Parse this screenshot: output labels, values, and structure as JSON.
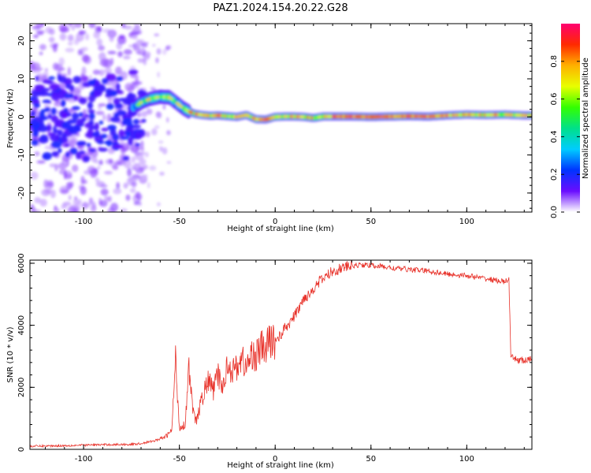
{
  "figure": {
    "title": "PAZ1.2024.154.20.22.G28"
  },
  "chart_data": [
    {
      "type": "heatmap",
      "xlabel": "Height of straight line (km)",
      "ylabel": "Frequency (Hz)",
      "xlim": [
        -128,
        134
      ],
      "ylim": [
        -25,
        24.5
      ],
      "xticks": [
        -100,
        -50,
        0,
        50,
        100
      ],
      "yticks": [
        -20,
        -10,
        0,
        10,
        20
      ],
      "grid": false,
      "ridge": {
        "x": [
          -74,
          -70,
          -65,
          -60,
          -55,
          -51,
          -48,
          -45,
          -42,
          -38,
          -34,
          -30,
          -25,
          -20,
          -15,
          -10,
          -5,
          0,
          5,
          10,
          15,
          20,
          25,
          30,
          40,
          50,
          60,
          70,
          80,
          90,
          100,
          110,
          120,
          130,
          134
        ],
        "freq": [
          2.5,
          3.8,
          4.8,
          5.3,
          5.1,
          3.5,
          2.3,
          1.4,
          0.8,
          0.5,
          0.3,
          0.4,
          0.2,
          0.0,
          0.5,
          -0.6,
          -0.7,
          0.0,
          0.1,
          0.1,
          0.0,
          -0.3,
          0.1,
          0.1,
          0.1,
          0.0,
          0.1,
          0.2,
          0.1,
          0.4,
          0.6,
          0.5,
          0.6,
          0.4,
          0.4
        ]
      },
      "colorbar": {
        "label": "Normalized spectral amplitude",
        "range": [
          0.0,
          1.0
        ],
        "ticks": [
          0.0,
          0.2,
          0.4,
          0.6,
          0.8
        ],
        "tick_labels": [
          "0.0",
          "0.2",
          "0.4",
          "0.6",
          "0.8"
        ],
        "colormap": [
          "#ffffff",
          "#6a0dff",
          "#0033ff",
          "#00ccff",
          "#00e08a",
          "#33ff00",
          "#e8ff00",
          "#ffb000",
          "#ff2a00",
          "#ff0070"
        ]
      }
    },
    {
      "type": "line",
      "xlabel": "Height of straight line (km)",
      "ylabel": "SNR (10 * v/v)",
      "xlim": [
        -128,
        134
      ],
      "ylim": [
        0,
        6100
      ],
      "xticks": [
        -100,
        -50,
        0,
        50,
        100
      ],
      "yticks": [
        0,
        2000,
        4000,
        6000
      ],
      "grid": false,
      "color": "#e8322a",
      "x": [
        -128,
        -110,
        -90,
        -75,
        -70,
        -65,
        -60,
        -57,
        -54,
        -52,
        -50,
        -47,
        -45,
        -43,
        -41,
        -38,
        -35,
        -32,
        -30,
        -27,
        -25,
        -22,
        -20,
        -17,
        -15,
        -12,
        -10,
        -7,
        -5,
        -3,
        0,
        3,
        5,
        8,
        10,
        13,
        15,
        18,
        20,
        23,
        25,
        28,
        30,
        33,
        35,
        38,
        40,
        45,
        50,
        55,
        60,
        70,
        80,
        90,
        100,
        110,
        115,
        120,
        122,
        123,
        126,
        130,
        134
      ],
      "y": [
        100,
        120,
        150,
        160,
        190,
        250,
        330,
        420,
        600,
        2900,
        700,
        800,
        2700,
        1200,
        900,
        1700,
        2200,
        1900,
        2400,
        2000,
        2800,
        2500,
        2700,
        2900,
        2600,
        3100,
        3000,
        3300,
        3200,
        3500,
        3500,
        3700,
        3900,
        4100,
        4300,
        4600,
        4900,
        5000,
        5200,
        5400,
        5500,
        5650,
        5750,
        5800,
        5850,
        5900,
        5920,
        5950,
        5930,
        5900,
        5850,
        5800,
        5750,
        5650,
        5600,
        5500,
        5450,
        5400,
        5500,
        2950,
        2900,
        2850,
        2900
      ]
    }
  ]
}
